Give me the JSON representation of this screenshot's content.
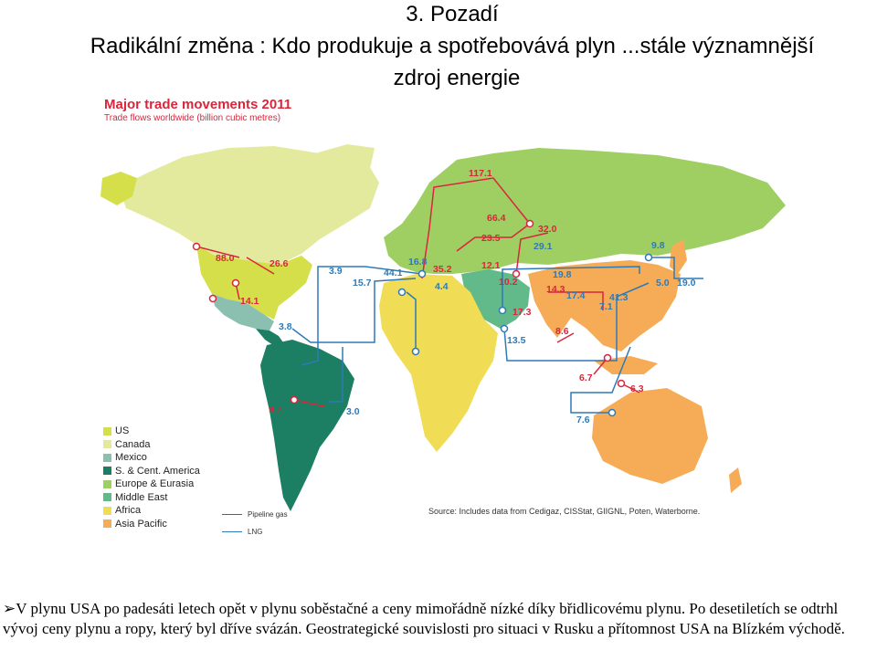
{
  "slide": {
    "title_line1": "3. Pozadí",
    "title_line2": "Radikální změna : Kdo produkuje a spotřebovává plyn ...stále významnější",
    "title_line3": "zdroj energie"
  },
  "map": {
    "title": "Major trade movements 2011",
    "subtitle": "Trade flows worldwide (billion cubic metres)",
    "source": "Source: Includes data from Cedigaz, CISStat, GIIGNL, Poten, Waterborne.",
    "colors": {
      "pipeline": "#d9263c",
      "lng": "#2e7ab8",
      "us": "#d4df4a",
      "canada": "#e3ea9e",
      "mexico": "#8bbfb0",
      "south_central_america": "#1c7e63",
      "europe_eurasia": "#9fcf62",
      "middle_east": "#62b98a",
      "africa": "#f0dc55",
      "asia_pacific": "#f6ac57"
    },
    "legend": [
      {
        "label": "US",
        "color": "#d4df4a"
      },
      {
        "label": "Canada",
        "color": "#e3ea9e"
      },
      {
        "label": "Mexico",
        "color": "#8bbfb0"
      },
      {
        "label": "S. & Cent. America",
        "color": "#1c7e63"
      },
      {
        "label": "Europe & Eurasia",
        "color": "#9fcf62"
      },
      {
        "label": "Middle East",
        "color": "#62b98a"
      },
      {
        "label": "Africa",
        "color": "#f0dc55"
      },
      {
        "label": "Asia Pacific",
        "color": "#f6ac57"
      }
    ],
    "flow_legend": {
      "pipeline": "Pipeline gas",
      "lng": "LNG"
    },
    "flow_labels": [
      {
        "id": "v1171",
        "text": "117.1",
        "type": "pipeline"
      },
      {
        "id": "v880",
        "text": "88.0",
        "type": "pipeline"
      },
      {
        "id": "v266",
        "text": "26.6",
        "type": "pipeline"
      },
      {
        "id": "v141",
        "text": "14.1",
        "type": "pipeline"
      },
      {
        "id": "v38",
        "text": "3.8",
        "type": "lng"
      },
      {
        "id": "v39",
        "text": "3.9",
        "type": "lng"
      },
      {
        "id": "v157",
        "text": "15.7",
        "type": "lng"
      },
      {
        "id": "v441",
        "text": "44.1",
        "type": "lng"
      },
      {
        "id": "v168",
        "text": "16.8",
        "type": "lng"
      },
      {
        "id": "v352",
        "text": "35.2",
        "type": "pipeline"
      },
      {
        "id": "v44",
        "text": "4.4",
        "type": "lng"
      },
      {
        "id": "v664",
        "text": "66.4",
        "type": "pipeline"
      },
      {
        "id": "v235",
        "text": "23.5",
        "type": "pipeline"
      },
      {
        "id": "v121",
        "text": "12.1",
        "type": "pipeline"
      },
      {
        "id": "v320",
        "text": "32.0",
        "type": "pipeline"
      },
      {
        "id": "v291",
        "text": "29.1",
        "type": "lng"
      },
      {
        "id": "v102",
        "text": "10.2",
        "type": "pipeline"
      },
      {
        "id": "v198",
        "text": "19.8",
        "type": "lng"
      },
      {
        "id": "v143",
        "text": "14.3",
        "type": "pipeline"
      },
      {
        "id": "v174",
        "text": "17.4",
        "type": "lng"
      },
      {
        "id": "v173",
        "text": "17.3",
        "type": "pipeline"
      },
      {
        "id": "v135",
        "text": "13.5",
        "type": "lng"
      },
      {
        "id": "v86",
        "text": "8.6",
        "type": "pipeline"
      },
      {
        "id": "v98",
        "text": "9.8",
        "type": "lng"
      },
      {
        "id": "v50",
        "text": "5.0",
        "type": "lng"
      },
      {
        "id": "v190",
        "text": "19.0",
        "type": "lng"
      },
      {
        "id": "v413",
        "text": "41.3",
        "type": "lng"
      },
      {
        "id": "v71",
        "text": "7.1",
        "type": "lng"
      },
      {
        "id": "v67",
        "text": "6.7",
        "type": "pipeline"
      },
      {
        "id": "v63",
        "text": "6.3",
        "type": "pipeline"
      },
      {
        "id": "v76",
        "text": "7.6",
        "type": "lng"
      },
      {
        "id": "v97",
        "text": "9.7",
        "type": "pipeline"
      },
      {
        "id": "v30",
        "text": "3.0",
        "type": "lng"
      }
    ]
  },
  "body": {
    "bullet": "➢",
    "text": "V plynu USA po padesáti letech opět v plynu soběstačné a ceny mimořádně nízké díky břidlicovému plynu. Po desetiletích se odtrhl vývoj ceny plynu a ropy, který byl dříve svázán. Geostrategické souvislosti pro situaci v Rusku a přítomnost USA na Blízkém východě."
  }
}
